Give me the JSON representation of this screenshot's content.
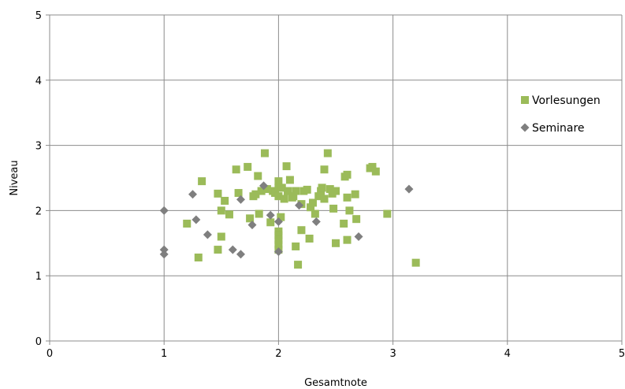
{
  "chart_data": {
    "type": "scatter",
    "title": "",
    "xlabel": "Gesamtnote",
    "ylabel": "Niveau",
    "xlim": [
      0,
      5
    ],
    "ylim": [
      0,
      5
    ],
    "xticks": [
      "0",
      "1",
      "2",
      "3",
      "4",
      "5"
    ],
    "yticks": [
      "0",
      "1",
      "2",
      "3",
      "4",
      "5"
    ],
    "grid": true,
    "legend_position": "right",
    "series": [
      {
        "name": "Vorlesungen",
        "marker": "square",
        "color": "#9bbb59",
        "points": [
          [
            1.2,
            1.8
          ],
          [
            1.3,
            1.28
          ],
          [
            1.33,
            2.45
          ],
          [
            1.47,
            2.26
          ],
          [
            1.47,
            1.4
          ],
          [
            1.5,
            2.0
          ],
          [
            1.5,
            1.6
          ],
          [
            1.53,
            2.15
          ],
          [
            1.57,
            1.94
          ],
          [
            1.63,
            2.63
          ],
          [
            1.65,
            2.27
          ],
          [
            1.73,
            2.67
          ],
          [
            1.75,
            1.88
          ],
          [
            1.78,
            2.22
          ],
          [
            1.8,
            2.25
          ],
          [
            1.82,
            2.53
          ],
          [
            1.83,
            1.95
          ],
          [
            1.85,
            2.3
          ],
          [
            1.88,
            2.88
          ],
          [
            1.9,
            2.33
          ],
          [
            1.93,
            1.82
          ],
          [
            1.95,
            2.3
          ],
          [
            1.97,
            2.27
          ],
          [
            2.0,
            2.45
          ],
          [
            2.0,
            2.35
          ],
          [
            2.0,
            2.22
          ],
          [
            2.0,
            1.68
          ],
          [
            2.0,
            1.62
          ],
          [
            2.0,
            1.55
          ],
          [
            2.0,
            1.48
          ],
          [
            2.0,
            1.4
          ],
          [
            2.02,
            1.9
          ],
          [
            2.03,
            2.35
          ],
          [
            2.05,
            2.18
          ],
          [
            2.07,
            2.68
          ],
          [
            2.08,
            2.3
          ],
          [
            2.1,
            2.47
          ],
          [
            2.12,
            2.2
          ],
          [
            2.13,
            2.22
          ],
          [
            2.15,
            2.3
          ],
          [
            2.15,
            1.45
          ],
          [
            2.17,
            1.17
          ],
          [
            2.2,
            2.1
          ],
          [
            2.2,
            1.7
          ],
          [
            2.22,
            2.3
          ],
          [
            2.25,
            2.32
          ],
          [
            2.27,
            1.57
          ],
          [
            2.28,
            2.05
          ],
          [
            2.3,
            2.12
          ],
          [
            2.32,
            1.95
          ],
          [
            2.35,
            2.22
          ],
          [
            2.37,
            2.3
          ],
          [
            2.38,
            2.35
          ],
          [
            2.4,
            2.63
          ],
          [
            2.4,
            2.18
          ],
          [
            2.43,
            2.88
          ],
          [
            2.45,
            2.33
          ],
          [
            2.47,
            2.26
          ],
          [
            2.48,
            2.03
          ],
          [
            2.5,
            2.3
          ],
          [
            2.5,
            1.5
          ],
          [
            2.57,
            1.8
          ],
          [
            2.58,
            2.52
          ],
          [
            2.6,
            2.55
          ],
          [
            2.6,
            2.2
          ],
          [
            2.6,
            1.55
          ],
          [
            2.62,
            2.0
          ],
          [
            2.67,
            2.25
          ],
          [
            2.68,
            1.87
          ],
          [
            2.8,
            2.65
          ],
          [
            2.82,
            2.67
          ],
          [
            2.85,
            2.6
          ],
          [
            2.95,
            1.95
          ],
          [
            3.2,
            1.2
          ]
        ]
      },
      {
        "name": "Seminare",
        "marker": "diamond",
        "color": "#7f7f7f",
        "points": [
          [
            1.0,
            2.0
          ],
          [
            1.0,
            1.4
          ],
          [
            1.0,
            1.33
          ],
          [
            1.25,
            2.25
          ],
          [
            1.28,
            1.86
          ],
          [
            1.38,
            1.63
          ],
          [
            1.6,
            1.4
          ],
          [
            1.67,
            1.33
          ],
          [
            1.67,
            2.17
          ],
          [
            1.77,
            1.78
          ],
          [
            1.87,
            2.38
          ],
          [
            1.93,
            1.93
          ],
          [
            2.0,
            1.83
          ],
          [
            2.0,
            1.37
          ],
          [
            2.18,
            2.08
          ],
          [
            2.33,
            1.83
          ],
          [
            2.7,
            1.6
          ],
          [
            3.14,
            2.33
          ]
        ]
      }
    ]
  }
}
